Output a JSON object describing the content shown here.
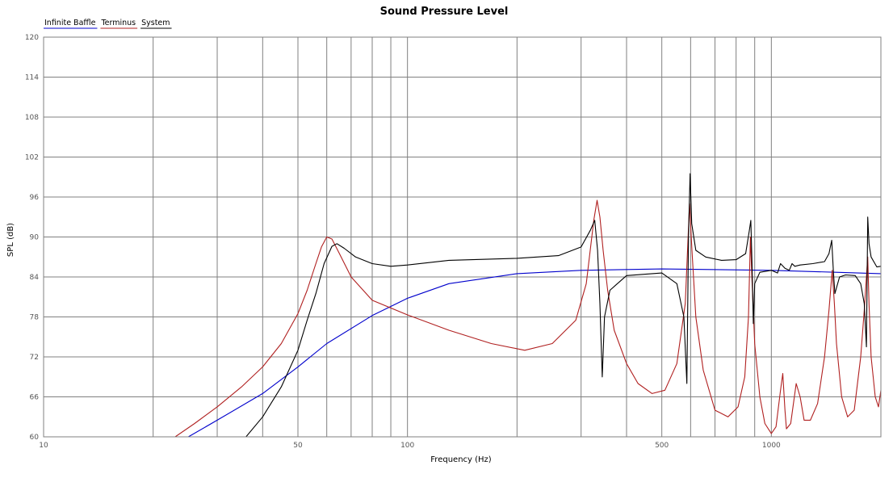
{
  "chart_data": {
    "type": "line",
    "title": "Sound Pressure Level",
    "xlabel": "Frequency (Hz)",
    "ylabel": "SPL (dB)",
    "xscale": "log",
    "xlim": [
      10,
      2000
    ],
    "ylim": [
      60,
      120
    ],
    "grid": true,
    "legend_position": "top-left",
    "x_ticks": [
      {
        "value": 10,
        "label": "10"
      },
      {
        "value": 50,
        "label": "50"
      },
      {
        "value": 100,
        "label": "100"
      },
      {
        "value": 500,
        "label": "500"
      },
      {
        "value": 1000,
        "label": "1000"
      }
    ],
    "y_ticks": [
      {
        "value": 60,
        "label": "60"
      },
      {
        "value": 66,
        "label": "66"
      },
      {
        "value": 72,
        "label": "72"
      },
      {
        "value": 78,
        "label": "78"
      },
      {
        "value": 84,
        "label": "84"
      },
      {
        "value": 90,
        "label": "90"
      },
      {
        "value": 96,
        "label": "96"
      },
      {
        "value": 102,
        "label": "102"
      },
      {
        "value": 108,
        "label": "108"
      },
      {
        "value": 114,
        "label": "114"
      },
      {
        "value": 120,
        "label": "120"
      }
    ],
    "series": [
      {
        "name": "Infinite Baffle",
        "color": "#0000cc",
        "points": [
          [
            25,
            60
          ],
          [
            30,
            62.5
          ],
          [
            40,
            66.5
          ],
          [
            50,
            70.5
          ],
          [
            60,
            74
          ],
          [
            80,
            78.2
          ],
          [
            100,
            80.8
          ],
          [
            130,
            83
          ],
          [
            200,
            84.5
          ],
          [
            300,
            85
          ],
          [
            500,
            85.2
          ],
          [
            1000,
            85
          ],
          [
            1500,
            84.7
          ],
          [
            2000,
            84.5
          ]
        ]
      },
      {
        "name": "Terminus",
        "color": "#b02020",
        "points": [
          [
            23,
            60
          ],
          [
            26,
            62
          ],
          [
            30,
            64.5
          ],
          [
            35,
            67.5
          ],
          [
            40,
            70.5
          ],
          [
            45,
            74
          ],
          [
            50,
            78.5
          ],
          [
            53,
            82
          ],
          [
            56,
            86
          ],
          [
            58,
            88.5
          ],
          [
            60,
            90
          ],
          [
            62,
            89.7
          ],
          [
            65,
            87.5
          ],
          [
            70,
            84
          ],
          [
            80,
            80.5
          ],
          [
            100,
            78.3
          ],
          [
            130,
            76
          ],
          [
            170,
            74
          ],
          [
            210,
            73
          ],
          [
            250,
            74
          ],
          [
            290,
            77.5
          ],
          [
            310,
            83
          ],
          [
            325,
            92.5
          ],
          [
            332,
            95.5
          ],
          [
            338,
            93
          ],
          [
            345,
            88
          ],
          [
            355,
            82
          ],
          [
            370,
            76
          ],
          [
            400,
            71
          ],
          [
            430,
            68
          ],
          [
            470,
            66.5
          ],
          [
            510,
            67
          ],
          [
            550,
            71
          ],
          [
            580,
            80
          ],
          [
            596,
            95
          ],
          [
            605,
            88
          ],
          [
            620,
            78
          ],
          [
            650,
            70
          ],
          [
            700,
            64
          ],
          [
            760,
            63
          ],
          [
            810,
            64.5
          ],
          [
            845,
            69
          ],
          [
            865,
            78
          ],
          [
            876,
            90
          ],
          [
            884,
            84
          ],
          [
            900,
            74
          ],
          [
            930,
            66
          ],
          [
            960,
            62
          ],
          [
            1000,
            60.5
          ],
          [
            1030,
            61.5
          ],
          [
            1060,
            67
          ],
          [
            1075,
            69.5
          ],
          [
            1090,
            64
          ],
          [
            1100,
            61.2
          ],
          [
            1130,
            62
          ],
          [
            1170,
            68
          ],
          [
            1200,
            66
          ],
          [
            1230,
            62.5
          ],
          [
            1280,
            62.5
          ],
          [
            1340,
            65
          ],
          [
            1400,
            72
          ],
          [
            1440,
            79
          ],
          [
            1470,
            85
          ],
          [
            1490,
            80
          ],
          [
            1510,
            74
          ],
          [
            1560,
            66
          ],
          [
            1620,
            63
          ],
          [
            1690,
            64
          ],
          [
            1760,
            72
          ],
          [
            1800,
            79
          ],
          [
            1840,
            87
          ],
          [
            1855,
            80
          ],
          [
            1880,
            72
          ],
          [
            1930,
            66
          ],
          [
            1970,
            64.5
          ],
          [
            2000,
            67
          ]
        ]
      },
      {
        "name": "System",
        "color": "#000000",
        "points": [
          [
            36,
            60
          ],
          [
            40,
            63
          ],
          [
            45,
            67.5
          ],
          [
            50,
            73
          ],
          [
            53,
            77.5
          ],
          [
            56,
            81.5
          ],
          [
            59,
            86
          ],
          [
            62,
            88.6
          ],
          [
            64,
            89
          ],
          [
            67,
            88.3
          ],
          [
            72,
            87
          ],
          [
            80,
            86
          ],
          [
            90,
            85.6
          ],
          [
            100,
            85.8
          ],
          [
            130,
            86.5
          ],
          [
            200,
            86.8
          ],
          [
            260,
            87.2
          ],
          [
            300,
            88.5
          ],
          [
            318,
            91
          ],
          [
            327,
            92.5
          ],
          [
            333,
            88
          ],
          [
            338,
            80
          ],
          [
            343,
            69
          ],
          [
            348,
            78
          ],
          [
            360,
            82
          ],
          [
            400,
            84.2
          ],
          [
            500,
            84.6
          ],
          [
            550,
            83
          ],
          [
            575,
            78
          ],
          [
            586,
            68
          ],
          [
            592,
            90
          ],
          [
            598,
            99.5
          ],
          [
            604,
            92
          ],
          [
            620,
            88
          ],
          [
            660,
            87
          ],
          [
            730,
            86.5
          ],
          [
            800,
            86.6
          ],
          [
            850,
            87.5
          ],
          [
            870,
            91
          ],
          [
            878,
            92.5
          ],
          [
            885,
            86
          ],
          [
            892,
            77
          ],
          [
            900,
            83
          ],
          [
            930,
            84.7
          ],
          [
            1000,
            85
          ],
          [
            1040,
            84.6
          ],
          [
            1060,
            86
          ],
          [
            1090,
            85.3
          ],
          [
            1120,
            85
          ],
          [
            1140,
            86
          ],
          [
            1160,
            85.6
          ],
          [
            1200,
            85.8
          ],
          [
            1300,
            86
          ],
          [
            1400,
            86.3
          ],
          [
            1440,
            87.5
          ],
          [
            1465,
            89.5
          ],
          [
            1480,
            85
          ],
          [
            1495,
            81.5
          ],
          [
            1540,
            84
          ],
          [
            1600,
            84.3
          ],
          [
            1700,
            84.2
          ],
          [
            1760,
            83
          ],
          [
            1800,
            80
          ],
          [
            1825,
            73.5
          ],
          [
            1840,
            93
          ],
          [
            1855,
            89
          ],
          [
            1880,
            87
          ],
          [
            1950,
            85.5
          ],
          [
            2000,
            85.6
          ]
        ]
      }
    ]
  }
}
